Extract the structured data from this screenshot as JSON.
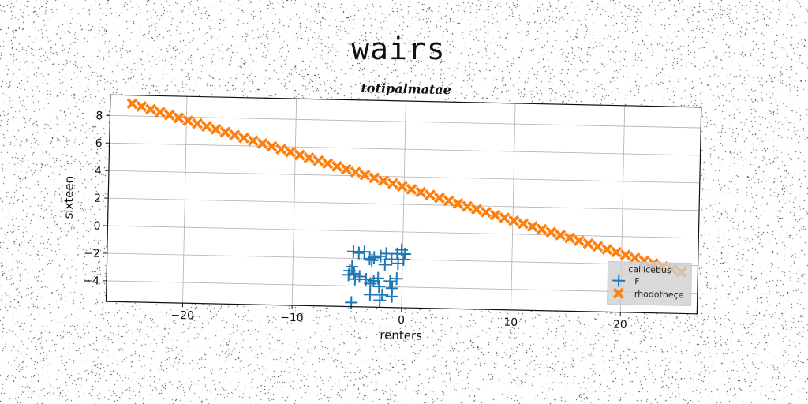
{
  "suptitle": "wairs",
  "chart_data": {
    "type": "scatter",
    "title": "totipalmatae",
    "xlabel": "renters",
    "ylabel": "sixteen",
    "xlim": [
      -27,
      27
    ],
    "ylim": [
      -5.5,
      9.5
    ],
    "xticks": [
      -20,
      -10,
      0,
      10,
      20
    ],
    "yticks": [
      -4,
      -2,
      0,
      2,
      4,
      6,
      8
    ],
    "grid": true,
    "legend": {
      "title": "callicebus",
      "placement": "lower-right"
    },
    "series": [
      {
        "name": "F",
        "marker": "+",
        "color": "#1f77b4",
        "points": [
          [
            -4.5,
            -1.5
          ],
          [
            -4.0,
            -1.6
          ],
          [
            -3.5,
            -1.5
          ],
          [
            -3.0,
            -2.0
          ],
          [
            -2.6,
            -1.9
          ],
          [
            -2.0,
            -1.8
          ],
          [
            -1.5,
            -1.6
          ],
          [
            -1.0,
            -2.0
          ],
          [
            -0.5,
            -1.6
          ],
          [
            -0.1,
            -1.3
          ],
          [
            0.2,
            -1.6
          ],
          [
            0.1,
            -2.0
          ],
          [
            -0.4,
            -2.3
          ],
          [
            -1.6,
            -2.4
          ],
          [
            -2.8,
            -2.1
          ],
          [
            -4.6,
            -2.6
          ],
          [
            -4.8,
            -2.9
          ],
          [
            -4.4,
            -3.1
          ],
          [
            -4.9,
            -3.2
          ],
          [
            -3.9,
            -3.3
          ],
          [
            -4.3,
            -3.5
          ],
          [
            -3.3,
            -3.5
          ],
          [
            -2.6,
            -3.6
          ],
          [
            -2.2,
            -3.4
          ],
          [
            -1.1,
            -3.6
          ],
          [
            -0.5,
            -3.4
          ],
          [
            -2.9,
            -3.8
          ],
          [
            -2.1,
            -4.0
          ],
          [
            -0.9,
            -4.1
          ],
          [
            -2.9,
            -4.6
          ],
          [
            -1.8,
            -4.6
          ],
          [
            -0.9,
            -4.7
          ],
          [
            -2.0,
            -5.0
          ],
          [
            -4.6,
            -5.2
          ]
        ]
      },
      {
        "name": "rhodotheçe",
        "marker": "X",
        "color": "#ff7f0e",
        "x_start": -25,
        "x_end": 25.5,
        "count": 60,
        "y_start": 8.9,
        "y_end": -2.5
      }
    ]
  }
}
